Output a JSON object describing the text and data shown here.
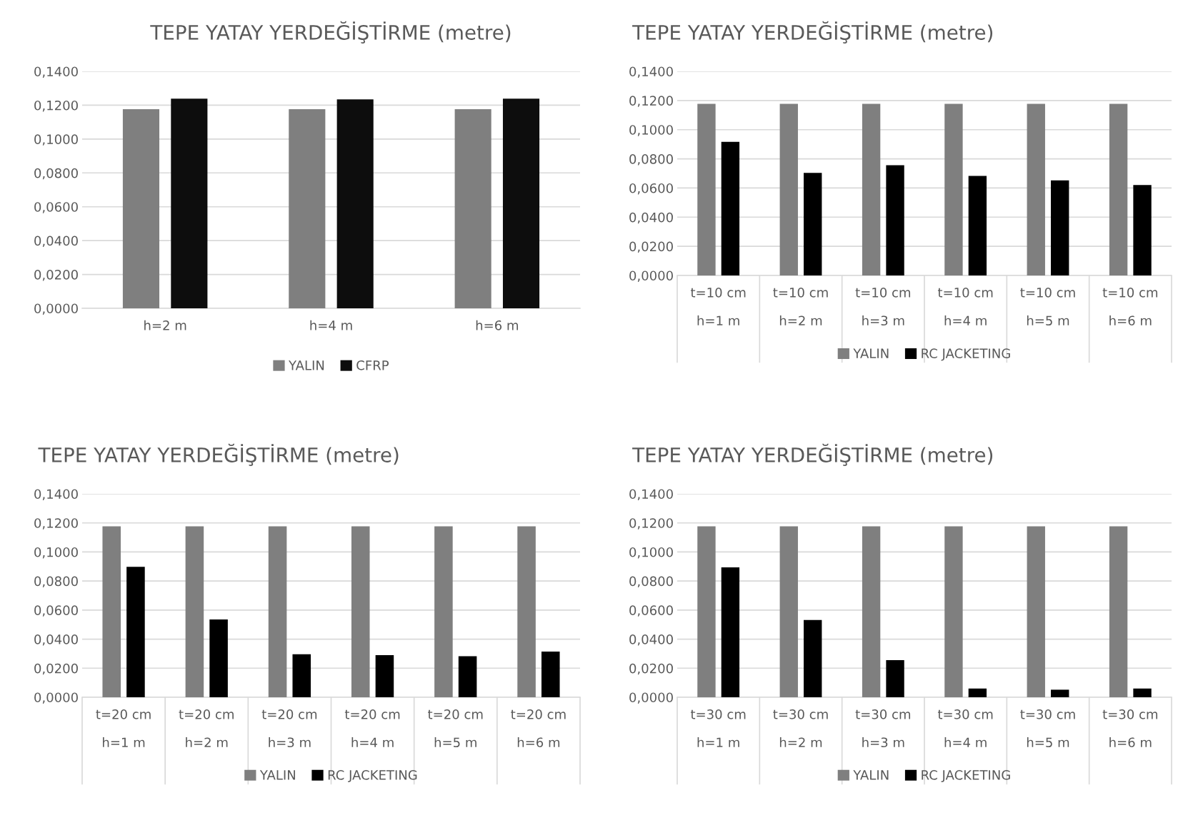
{
  "chart_data": [
    {
      "type": "bar",
      "title": "TEPE YATAY YERDEĞİŞTİRME (metre)",
      "categories": [
        "h=2 m",
        "h=4 m",
        "h=6 m"
      ],
      "ylim": [
        0,
        0.14
      ],
      "yticks": [
        {
          "value": 0,
          "label": "0,0000"
        },
        {
          "value": 0.02,
          "label": "0,0200"
        },
        {
          "value": 0.04,
          "label": "0,0400"
        },
        {
          "value": 0.06,
          "label": "0,0600"
        },
        {
          "value": 0.08,
          "label": "0,0800"
        },
        {
          "value": 0.1,
          "label": "0,1000"
        },
        {
          "value": 0.12,
          "label": "0,1200"
        },
        {
          "value": 0.14,
          "label": "0,1400"
        }
      ],
      "grid": "y",
      "legend": "bottom",
      "series": [
        {
          "name": "YALIN",
          "color": "#7f7f7f",
          "values": [
            0.1176,
            0.1176,
            0.1176
          ]
        },
        {
          "name": "CFRP",
          "color": "#0d0d0d",
          "values": [
            0.1239,
            0.1235,
            0.1239
          ]
        }
      ]
    },
    {
      "type": "bar",
      "title": "TEPE YATAY YERDEĞİŞTİRME (metre)",
      "categories": [
        "t=10 cm\nh=1 m",
        "t=10 cm\nh=2 m",
        "t=10 cm\nh=3 m",
        "t=10 cm\nh=4 m",
        "t=10 cm\nh=5 m",
        "t=10 cm\nh=6 m"
      ],
      "ylim": [
        0,
        0.14
      ],
      "yticks": [
        {
          "value": 0,
          "label": "0,0000"
        },
        {
          "value": 0.02,
          "label": "0,0200"
        },
        {
          "value": 0.04,
          "label": "0,0400"
        },
        {
          "value": 0.06,
          "label": "0,0600"
        },
        {
          "value": 0.08,
          "label": "0,0800"
        },
        {
          "value": 0.1,
          "label": "0,1000"
        },
        {
          "value": 0.12,
          "label": "0,1200"
        },
        {
          "value": 0.14,
          "label": "0,1400"
        }
      ],
      "grid": "y",
      "legend": "bottom",
      "series": [
        {
          "name": "YALIN",
          "color": "#7f7f7f",
          "values": [
            0.1177,
            0.1177,
            0.1177,
            0.1177,
            0.1177,
            0.1177
          ]
        },
        {
          "name": "RC JACKETING",
          "color": "#000000",
          "values": [
            0.0917,
            0.0704,
            0.0756,
            0.0683,
            0.0652,
            0.0621
          ]
        }
      ]
    },
    {
      "type": "bar",
      "title": "TEPE YATAY YERDEĞİŞTİRME (metre)",
      "categories": [
        "t=20 cm\nh=1 m",
        "t=20 cm\nh=2 m",
        "t=20 cm\nh=3 m",
        "t=20 cm\nh=4 m",
        "t=20 cm\nh=5 m",
        "t=20 cm\nh=6 m"
      ],
      "ylim": [
        0,
        0.14
      ],
      "yticks": [
        {
          "value": 0,
          "label": "0,0000"
        },
        {
          "value": 0.02,
          "label": "0,0200"
        },
        {
          "value": 0.04,
          "label": "0,0400"
        },
        {
          "value": 0.06,
          "label": "0,0600"
        },
        {
          "value": 0.08,
          "label": "0,0800"
        },
        {
          "value": 0.1,
          "label": "0,1000"
        },
        {
          "value": 0.12,
          "label": "0,1200"
        },
        {
          "value": 0.14,
          "label": "0,1400"
        }
      ],
      "grid": "y",
      "legend": "bottom",
      "series": [
        {
          "name": "YALIN",
          "color": "#7f7f7f",
          "values": [
            0.1177,
            0.1177,
            0.1177,
            0.1177,
            0.1177,
            0.1177
          ]
        },
        {
          "name": "RC JACKETING",
          "color": "#000000",
          "values": [
            0.0898,
            0.0536,
            0.0296,
            0.029,
            0.0283,
            0.0314
          ]
        }
      ]
    },
    {
      "type": "bar",
      "title": "TEPE YATAY YERDEĞİŞTİRME (metre)",
      "categories": [
        "t=30 cm\nh=1 m",
        "t=30 cm\nh=2 m",
        "t=30 cm\nh=3 m",
        "t=30 cm\nh=4 m",
        "t=30 cm\nh=5 m",
        "t=30 cm\nh=6 m"
      ],
      "ylim": [
        0,
        0.14
      ],
      "yticks": [
        {
          "value": 0,
          "label": "0,0000"
        },
        {
          "value": 0.02,
          "label": "0,0200"
        },
        {
          "value": 0.04,
          "label": "0,0400"
        },
        {
          "value": 0.06,
          "label": "0,0600"
        },
        {
          "value": 0.08,
          "label": "0,0800"
        },
        {
          "value": 0.1,
          "label": "0,1000"
        },
        {
          "value": 0.12,
          "label": "0,1200"
        },
        {
          "value": 0.14,
          "label": "0,1400"
        }
      ],
      "grid": "y",
      "legend": "bottom",
      "series": [
        {
          "name": "YALIN",
          "color": "#7f7f7f",
          "values": [
            0.1177,
            0.1177,
            0.1177,
            0.1177,
            0.1177,
            0.1177
          ]
        },
        {
          "name": "RC JACKETING",
          "color": "#000000",
          "values": [
            0.0894,
            0.0532,
            0.0255,
            0.006,
            0.0052,
            0.006
          ]
        }
      ]
    }
  ]
}
